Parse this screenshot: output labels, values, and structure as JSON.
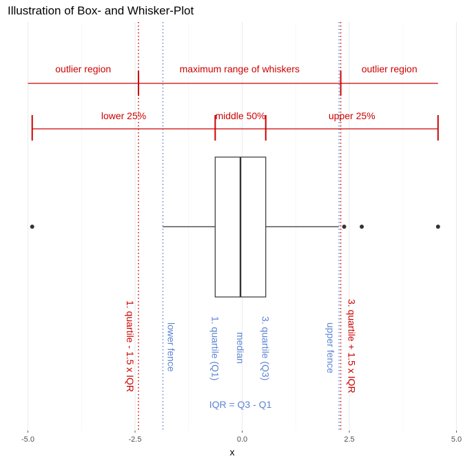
{
  "chart_data": {
    "type": "boxplot",
    "title": "Illustration of Box- and Whisker-Plot",
    "xlabel": "x",
    "ylabel": "",
    "xlim": [
      -5.2,
      5.0
    ],
    "xticks": [
      -5,
      -2.5,
      0,
      2.5,
      5
    ],
    "xtick_labels": [
      "-5.0",
      "-2.5",
      "0.0",
      "2.5",
      "5.0"
    ],
    "grid": true,
    "box": {
      "q1": -0.63,
      "median": -0.04,
      "q3": 0.55,
      "whisker_low": -1.85,
      "whisker_high": 2.25
    },
    "outliers": [
      -4.9,
      2.38,
      2.79,
      4.57
    ],
    "fences": {
      "lower": -1.85,
      "upper": 2.26
    },
    "iqr_lines": {
      "lower": -2.42,
      "upper": 2.3
    },
    "range_markers": {
      "min": -4.9,
      "q1": -0.63,
      "q3": 0.55,
      "max": 4.57
    },
    "labels": {
      "outlier_region": "outlier region",
      "whisker_range": "maximum range of whiskers",
      "lower_25": "lower 25%",
      "middle_50": "middle 50%",
      "upper_25": "upper 25%",
      "lower_iqr": "1. quartile - 1.5 x IQR",
      "upper_iqr": "3. quartile + 1.5 x IQR",
      "lower_fence": "lower fence",
      "upper_fence": "upper fence",
      "q1": "1. quartile (Q1)",
      "median": "median",
      "q3": "3. quartile (Q3)",
      "iqr": "IQR = Q3 - Q1"
    },
    "colors": {
      "annotation_red": "#cc0000",
      "annotation_blue": "#5b84d4",
      "box": "#333333",
      "grid": "#ebebeb"
    }
  }
}
